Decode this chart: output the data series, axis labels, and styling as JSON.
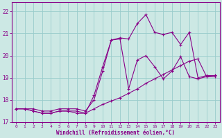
{
  "xlabel": "Windchill (Refroidissement éolien,°C)",
  "bg_color": "#cce8e4",
  "line_color": "#880088",
  "grid_color": "#99cccc",
  "xlim": [
    -0.5,
    23.5
  ],
  "ylim": [
    17,
    22.4
  ],
  "yticks": [
    17,
    18,
    19,
    20,
    21,
    22
  ],
  "xticks": [
    0,
    1,
    2,
    3,
    4,
    5,
    6,
    7,
    8,
    9,
    10,
    11,
    12,
    13,
    14,
    15,
    16,
    17,
    18,
    19,
    20,
    21,
    22,
    23
  ],
  "series1_x": [
    0,
    1,
    2,
    3,
    4,
    5,
    6,
    7,
    8,
    9,
    10,
    11,
    12,
    13,
    14,
    15,
    16,
    17,
    18,
    19,
    20,
    21,
    22,
    23
  ],
  "series1_y": [
    17.6,
    17.6,
    17.5,
    17.4,
    17.4,
    17.5,
    17.5,
    17.5,
    17.4,
    17.6,
    17.8,
    17.95,
    18.1,
    18.3,
    18.5,
    18.75,
    18.95,
    19.15,
    19.35,
    19.55,
    19.75,
    19.85,
    19.05,
    19.1
  ],
  "series2_x": [
    0,
    1,
    2,
    3,
    4,
    5,
    6,
    7,
    8,
    9,
    10,
    11,
    12,
    13,
    14,
    15,
    16,
    17,
    18,
    19,
    20,
    21,
    22,
    23
  ],
  "series2_y": [
    17.6,
    17.6,
    17.5,
    17.4,
    17.4,
    17.5,
    17.5,
    17.4,
    17.4,
    18.2,
    19.5,
    20.7,
    20.75,
    18.5,
    19.8,
    20.0,
    19.5,
    18.95,
    19.3,
    19.95,
    19.05,
    18.95,
    19.05,
    19.05
  ],
  "series3_x": [
    0,
    1,
    2,
    3,
    4,
    5,
    6,
    7,
    8,
    9,
    10,
    11,
    12,
    13,
    14,
    15,
    16,
    17,
    18,
    19,
    20,
    21,
    22,
    23
  ],
  "series3_y": [
    17.6,
    17.6,
    17.6,
    17.5,
    17.5,
    17.6,
    17.6,
    17.6,
    17.5,
    18.0,
    19.3,
    20.7,
    20.8,
    20.75,
    21.45,
    21.85,
    21.05,
    20.95,
    21.05,
    20.5,
    21.05,
    19.0,
    19.1,
    19.1
  ]
}
